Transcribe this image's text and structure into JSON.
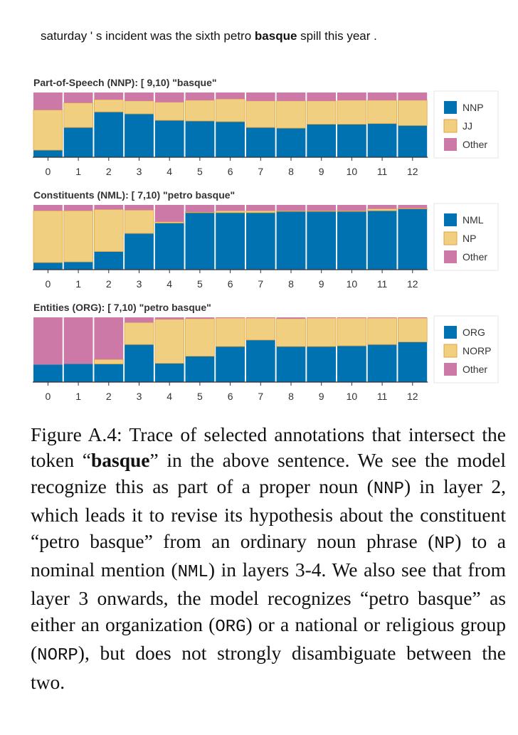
{
  "sentence": {
    "before": "saturday ' s incident was the sixth petro ",
    "bold": "basque",
    "after": " spill this year ."
  },
  "colors": {
    "blue": "#0072b2",
    "yellow": "#f0cf80",
    "pink": "#cc79a7",
    "yellow_edge": "#e6a33a"
  },
  "chart_data": [
    {
      "type": "bar",
      "stacked": true,
      "normalized": true,
      "title": "Part-of-Speech (NNP): [ 9,10) \"basque\"",
      "categories": [
        "0",
        "1",
        "2",
        "3",
        "4",
        "5",
        "6",
        "7",
        "8",
        "9",
        "10",
        "11",
        "12"
      ],
      "ylim": [
        0,
        1
      ],
      "series": [
        {
          "name": "NNP",
          "color": "#0072b2",
          "values": [
            0.11,
            0.46,
            0.7,
            0.67,
            0.57,
            0.56,
            0.55,
            0.46,
            0.45,
            0.51,
            0.51,
            0.52,
            0.49
          ]
        },
        {
          "name": "JJ",
          "color": "#f0cf80",
          "values": [
            0.62,
            0.38,
            0.19,
            0.2,
            0.28,
            0.32,
            0.35,
            0.41,
            0.42,
            0.36,
            0.37,
            0.36,
            0.39
          ]
        },
        {
          "name": "Other",
          "color": "#cc79a7",
          "values": [
            0.27,
            0.16,
            0.11,
            0.13,
            0.15,
            0.12,
            0.1,
            0.13,
            0.13,
            0.13,
            0.12,
            0.12,
            0.12
          ]
        }
      ],
      "legend": [
        "NNP",
        "JJ",
        "Other"
      ],
      "legend_position": "right"
    },
    {
      "type": "bar",
      "stacked": true,
      "normalized": true,
      "title": "Constituents (NML): [ 7,10) \"petro basque\"",
      "categories": [
        "0",
        "1",
        "2",
        "3",
        "4",
        "5",
        "6",
        "7",
        "8",
        "9",
        "10",
        "11",
        "12"
      ],
      "ylim": [
        0,
        1
      ],
      "series": [
        {
          "name": "NML",
          "color": "#0072b2",
          "values": [
            0.11,
            0.12,
            0.28,
            0.56,
            0.72,
            0.88,
            0.88,
            0.88,
            0.9,
            0.9,
            0.9,
            0.91,
            0.94
          ]
        },
        {
          "name": "NP",
          "color": "#f0cf80",
          "values": [
            0.8,
            0.79,
            0.65,
            0.36,
            0.02,
            0.01,
            0.03,
            0.03,
            0.01,
            0.01,
            0.01,
            0.03,
            0.01
          ]
        },
        {
          "name": "Other",
          "color": "#cc79a7",
          "values": [
            0.09,
            0.09,
            0.07,
            0.08,
            0.26,
            0.11,
            0.09,
            0.09,
            0.09,
            0.09,
            0.09,
            0.06,
            0.05
          ]
        }
      ],
      "legend": [
        "NML",
        "NP",
        "Other"
      ],
      "legend_position": "right"
    },
    {
      "type": "bar",
      "stacked": true,
      "normalized": true,
      "title": "Entities (ORG): [ 7,10) \"petro basque\"",
      "categories": [
        "0",
        "1",
        "2",
        "3",
        "4",
        "5",
        "6",
        "7",
        "8",
        "9",
        "10",
        "11",
        "12"
      ],
      "ylim": [
        0,
        1
      ],
      "series": [
        {
          "name": "ORG",
          "color": "#0072b2",
          "values": [
            0.27,
            0.28,
            0.28,
            0.58,
            0.29,
            0.4,
            0.55,
            0.65,
            0.55,
            0.55,
            0.56,
            0.58,
            0.62
          ]
        },
        {
          "name": "NORP",
          "color": "#f0cf80",
          "values": [
            0.0,
            0.0,
            0.07,
            0.34,
            0.68,
            0.58,
            0.44,
            0.34,
            0.43,
            0.44,
            0.43,
            0.41,
            0.37
          ]
        },
        {
          "name": "Other",
          "color": "#cc79a7",
          "values": [
            0.73,
            0.72,
            0.65,
            0.08,
            0.03,
            0.02,
            0.01,
            0.01,
            0.02,
            0.01,
            0.01,
            0.01,
            0.01
          ]
        }
      ],
      "legend": [
        "ORG",
        "NORP",
        "Other"
      ],
      "legend_position": "right"
    }
  ],
  "caption": {
    "label": "Figure A.4:",
    "p1": " Trace of selected annotations that intersect the token “",
    "bold": "basque",
    "p2": "” in the above sentence. We see the model recognize this as part of a proper noun (",
    "code1": "NNP",
    "p3": ") in layer 2, which leads it to revise its hypothesis about the constituent “petro basque” from an ordinary noun phrase (",
    "code2": "NP",
    "p4": ") to a nominal mention (",
    "code3": "NML",
    "p5": ") in layers 3-4. We also see that from layer 3 onwards, the model recognizes “petro basque” as either an organization (",
    "code4": "ORG",
    "p6": ") or a national or religious group (",
    "code5": "NORP",
    "p7": "), but does not strongly disambiguate between the two."
  }
}
